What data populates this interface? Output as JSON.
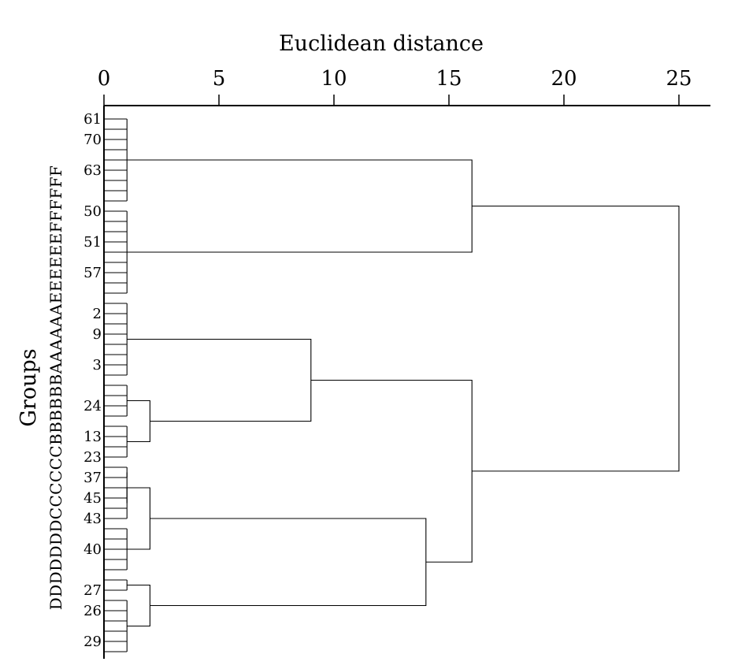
{
  "chart_data": {
    "type": "dendrogram",
    "xlabel": "Euclidean distance",
    "ylabel": "Groups",
    "xlim": [
      0,
      26.3
    ],
    "x_ticks": [
      0,
      5,
      10,
      15,
      20,
      25
    ],
    "leaf_labels": [
      {
        "text": "61",
        "row": 0
      },
      {
        "text": "70",
        "row": 2
      },
      {
        "text": "63",
        "row": 5
      },
      {
        "text": "50",
        "row": 9
      },
      {
        "text": "51",
        "row": 12
      },
      {
        "text": "57",
        "row": 15
      },
      {
        "text": "2",
        "row": 19
      },
      {
        "text": "9",
        "row": 21
      },
      {
        "text": "3",
        "row": 24
      },
      {
        "text": "24",
        "row": 28
      },
      {
        "text": "13",
        "row": 31
      },
      {
        "text": "23",
        "row": 33
      },
      {
        "text": "37",
        "row": 35
      },
      {
        "text": "45",
        "row": 37
      },
      {
        "text": "43",
        "row": 39
      },
      {
        "text": "40",
        "row": 42
      },
      {
        "text": "27",
        "row": 46
      },
      {
        "text": "26",
        "row": 48
      },
      {
        "text": "29",
        "row": 51
      }
    ],
    "group_letters": "DDDDDDDCCCCCCBBBBBBAAAAAAEEEEEEFFFFFF",
    "clusters": [
      {
        "id": "F",
        "leaves": [
          0,
          8
        ],
        "height": 1.0
      },
      {
        "id": "E",
        "leaves": [
          9,
          17
        ],
        "height": 1.0
      },
      {
        "id": "A",
        "leaves": [
          18,
          25
        ],
        "height": 1.0
      },
      {
        "id": "B1",
        "leaves": [
          26,
          29
        ],
        "height": 1.0
      },
      {
        "id": "B2",
        "leaves": [
          30,
          33
        ],
        "height": 1.0
      },
      {
        "id": "C1",
        "leaves": [
          34,
          35
        ],
        "height": 1.0
      },
      {
        "id": "C2",
        "leaves": [
          36,
          39
        ],
        "height": 1.0
      },
      {
        "id": "C3",
        "leaves": [
          40,
          44
        ],
        "height": 1.0
      },
      {
        "id": "D1",
        "leaves": [
          45,
          46
        ],
        "height": 1.0
      },
      {
        "id": "D2",
        "leaves": [
          47,
          52
        ],
        "height": 1.0
      }
    ],
    "merges": [
      {
        "id": "B",
        "children": [
          "B1",
          "B2"
        ],
        "height": 2.0
      },
      {
        "id": "C12",
        "children": [
          "C1",
          "C2"
        ],
        "height": 1.0
      },
      {
        "id": "C",
        "children": [
          "C12",
          "C3"
        ],
        "height": 2.0
      },
      {
        "id": "D",
        "children": [
          "D1",
          "D2"
        ],
        "height": 2.0
      },
      {
        "id": "CD",
        "children": [
          "C",
          "D"
        ],
        "height": 14.0
      },
      {
        "id": "AB",
        "children": [
          "A",
          "B"
        ],
        "height": 9.0
      },
      {
        "id": "ABCD",
        "children": [
          "AB",
          "CD"
        ],
        "height": 16.0
      },
      {
        "id": "EF",
        "children": [
          "F",
          "E"
        ],
        "height": 16.0
      },
      {
        "id": "root",
        "children": [
          "EF",
          "ABCD"
        ],
        "height": 25.0
      }
    ]
  }
}
